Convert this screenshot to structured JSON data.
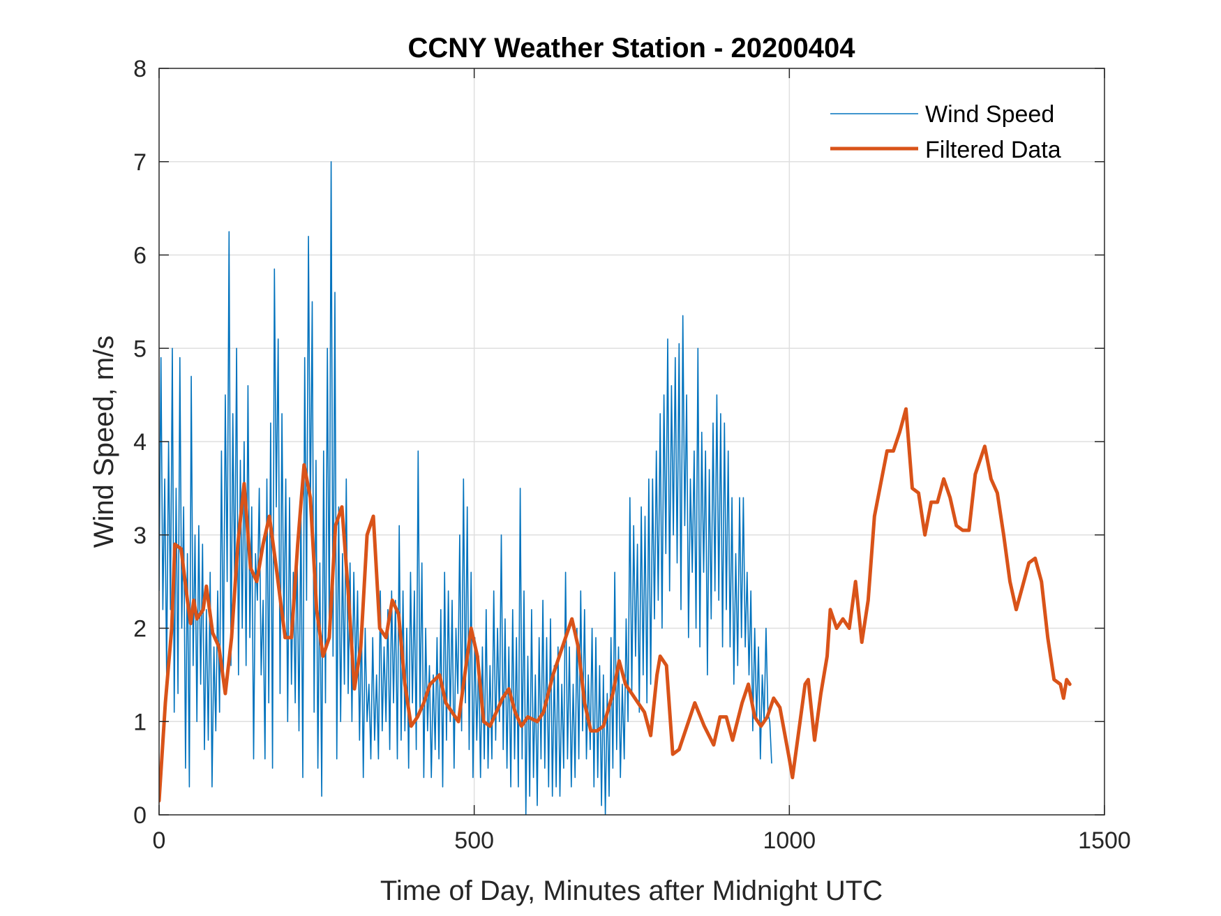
{
  "chart_data": {
    "type": "line",
    "title": "CCNY Weather Station - 20200404",
    "xlabel": "Time of Day, Minutes after Midnight UTC",
    "ylabel": "Wind Speed, m/s",
    "xlim": [
      0,
      1500
    ],
    "ylim": [
      0,
      8
    ],
    "xticks": [
      0,
      500,
      1000,
      1500
    ],
    "xtick_labels": [
      "0",
      "500",
      "1000",
      "1500"
    ],
    "yticks": [
      0,
      1,
      2,
      3,
      4,
      5,
      6,
      7,
      8
    ],
    "ytick_labels": [
      "0",
      "1",
      "2",
      "3",
      "4",
      "5",
      "6",
      "7",
      "8"
    ],
    "grid": true,
    "legend": {
      "position": "top-right",
      "entries": [
        "Wind Speed",
        "Filtered Data"
      ]
    },
    "colors": {
      "wind_speed": "#0072BD",
      "filtered": "#D95319",
      "axes": "#262626",
      "grid": "#DFDFDF"
    },
    "series": [
      {
        "name": "Wind Speed",
        "x_step_minutes": 3,
        "x_start": 0,
        "values": [
          2.4,
          4.9,
          2.2,
          3.6,
          1.5,
          4.0,
          2.2,
          5.0,
          1.1,
          3.5,
          1.3,
          4.9,
          2.0,
          3.3,
          0.5,
          2.8,
          0.3,
          4.7,
          1.6,
          3.0,
          1.0,
          3.1,
          1.4,
          2.9,
          0.7,
          2.2,
          0.8,
          2.6,
          0.3,
          1.8,
          0.9,
          2.4,
          1.1,
          3.9,
          1.4,
          4.5,
          2.5,
          6.25,
          1.6,
          4.3,
          2.4,
          5.0,
          1.5,
          3.8,
          2.0,
          4.0,
          1.6,
          4.6,
          1.9,
          3.3,
          0.6,
          2.8,
          2.3,
          3.5,
          1.5,
          2.3,
          0.6,
          3.6,
          1.2,
          4.2,
          0.5,
          5.85,
          3.3,
          5.1,
          1.3,
          4.3,
          1.9,
          3.6,
          1.0,
          3.4,
          1.4,
          2.6,
          1.2,
          2.9,
          0.9,
          3.3,
          0.4,
          4.9,
          2.3,
          6.2,
          3.2,
          5.5,
          1.1,
          3.8,
          0.5,
          2.7,
          0.2,
          3.9,
          1.2,
          5.0,
          2.0,
          7.0,
          1.7,
          5.6,
          0.6,
          3.3,
          1.0,
          2.8,
          1.4,
          3.6,
          1.3,
          2.7,
          1.0,
          2.6,
          1.5,
          2.4,
          0.8,
          2.1,
          0.4,
          2.0,
          1.0,
          1.4,
          0.6,
          1.9,
          0.8,
          1.5,
          0.6,
          2.4,
          0.9,
          1.8,
          1.0,
          2.2,
          0.7,
          2.4,
          1.2,
          2.3,
          0.6,
          3.1,
          0.8,
          2.4,
          0.9,
          2.0,
          0.5,
          2.6,
          1.2,
          2.4,
          0.7,
          3.9,
          1.1,
          2.7,
          0.4,
          2.0,
          0.9,
          1.6,
          0.4,
          1.5,
          0.7,
          1.9,
          0.6,
          2.2,
          0.3,
          2.6,
          0.8,
          2.4,
          1.0,
          2.3,
          0.5,
          2.0,
          1.3,
          3.0,
          0.9,
          3.6,
          1.2,
          3.3,
          0.7,
          2.6,
          0.4,
          1.9,
          0.8,
          1.7,
          0.4,
          1.8,
          0.6,
          2.2,
          0.5,
          1.6,
          0.6,
          2.4,
          0.8,
          2.0,
          1.0,
          3.0,
          0.7,
          2.1,
          0.5,
          1.8,
          0.3,
          2.2,
          0.6,
          1.9,
          0.3,
          3.5,
          0.6,
          2.4,
          0.0,
          1.7,
          0.2,
          2.2,
          0.4,
          1.5,
          0.1,
          1.9,
          0.6,
          2.3,
          0.5,
          1.9,
          0.3,
          2.1,
          0.2,
          1.6,
          0.3,
          1.8,
          0.2,
          1.4,
          0.5,
          2.6,
          0.6,
          1.8,
          0.3,
          1.4,
          0.4,
          2.0,
          0.6,
          2.4,
          0.9,
          2.2,
          0.6,
          1.5,
          0.7,
          2.0,
          0.3,
          1.9,
          0.4,
          1.6,
          0.1,
          1.5,
          0.0,
          1.3,
          0.2,
          1.9,
          0.5,
          2.6,
          0.7,
          1.8,
          0.4,
          1.4,
          0.6,
          2.1,
          1.0,
          3.4,
          1.3,
          3.1,
          1.7,
          2.9,
          1.1,
          3.3,
          1.5,
          3.2,
          1.2,
          3.6,
          1.4,
          3.6,
          2.1,
          3.9,
          2.3,
          4.3,
          2.0,
          4.5,
          2.8,
          5.1,
          2.4,
          4.6,
          3.0,
          4.9,
          2.7,
          5.05,
          2.2,
          5.35,
          3.1,
          4.5,
          1.9,
          3.6,
          2.6,
          3.9,
          2.0,
          5.0,
          1.8,
          4.1,
          2.6,
          3.9,
          1.5,
          3.7,
          2.1,
          4.2,
          2.4,
          4.5,
          2.3,
          4.3,
          1.8,
          4.2,
          2.2,
          3.9,
          1.8,
          3.4,
          1.4,
          2.8,
          1.6,
          3.4,
          1.9,
          3.4,
          1.8,
          2.6,
          1.5,
          2.4,
          0.9,
          2.0,
          1.0,
          1.8,
          0.6,
          1.5,
          1.0,
          2.0,
          1.1,
          1.0,
          0.55
        ]
      },
      {
        "name": "Filtered Data",
        "x": [
          0,
          10,
          20,
          25,
          35,
          45,
          50,
          55,
          60,
          70,
          75,
          85,
          95,
          105,
          115,
          125,
          135,
          145,
          155,
          165,
          175,
          185,
          200,
          210,
          220,
          230,
          240,
          250,
          260,
          270,
          280,
          290,
          300,
          310,
          320,
          330,
          340,
          350,
          360,
          370,
          380,
          390,
          400,
          410,
          420,
          430,
          445,
          455,
          465,
          475,
          485,
          495,
          505,
          515,
          525,
          535,
          545,
          555,
          565,
          575,
          585,
          600,
          610,
          625,
          640,
          655,
          665,
          675,
          685,
          695,
          705,
          720,
          730,
          740,
          750,
          760,
          770,
          780,
          790,
          795,
          805,
          815,
          825,
          840,
          850,
          865,
          880,
          890,
          900,
          910,
          925,
          935,
          945,
          955,
          965,
          975,
          985,
          1000,
          1005,
          1015,
          1025,
          1030,
          1040,
          1050,
          1060,
          1065,
          1075,
          1085,
          1095,
          1105,
          1115,
          1125,
          1135,
          1145,
          1155,
          1165,
          1175,
          1185,
          1195,
          1205,
          1215,
          1225,
          1235,
          1245,
          1255,
          1265,
          1275,
          1285,
          1295,
          1310,
          1320,
          1330,
          1340,
          1350,
          1360,
          1370,
          1380,
          1390,
          1400,
          1410,
          1420,
          1430,
          1435,
          1440,
          1445
        ],
        "values": [
          0.15,
          1.2,
          2.0,
          2.9,
          2.85,
          2.3,
          2.05,
          2.3,
          2.1,
          2.2,
          2.45,
          1.95,
          1.8,
          1.3,
          1.9,
          2.9,
          3.55,
          2.65,
          2.5,
          2.9,
          3.2,
          2.7,
          1.9,
          1.9,
          2.9,
          3.75,
          3.4,
          2.2,
          1.7,
          1.9,
          3.1,
          3.3,
          2.4,
          1.35,
          1.8,
          3.0,
          3.2,
          2.0,
          1.9,
          2.3,
          2.15,
          1.4,
          0.95,
          1.05,
          1.2,
          1.4,
          1.5,
          1.2,
          1.1,
          1.0,
          1.5,
          2.0,
          1.7,
          1.0,
          0.95,
          1.1,
          1.25,
          1.35,
          1.1,
          0.95,
          1.05,
          1.0,
          1.1,
          1.5,
          1.8,
          2.1,
          1.8,
          1.2,
          0.9,
          0.9,
          0.95,
          1.3,
          1.65,
          1.4,
          1.3,
          1.2,
          1.1,
          0.85,
          1.5,
          1.7,
          1.6,
          0.65,
          0.7,
          1.0,
          1.2,
          0.95,
          0.75,
          1.05,
          1.05,
          0.8,
          1.2,
          1.4,
          1.05,
          0.95,
          1.05,
          1.25,
          1.15,
          0.6,
          0.4,
          0.9,
          1.4,
          1.45,
          0.8,
          1.3,
          1.7,
          2.2,
          2.0,
          2.1,
          2.0,
          2.5,
          1.85,
          2.3,
          3.2,
          3.55,
          3.9,
          3.9,
          4.1,
          4.35,
          3.5,
          3.45,
          3.0,
          3.35,
          3.35,
          3.6,
          3.4,
          3.1,
          3.05,
          3.05,
          3.65,
          3.95,
          3.6,
          3.45,
          3.0,
          2.5,
          2.2,
          2.45,
          2.7,
          2.75,
          2.5,
          1.9,
          1.45,
          1.4,
          1.25,
          1.45,
          1.4
        ]
      }
    ]
  }
}
